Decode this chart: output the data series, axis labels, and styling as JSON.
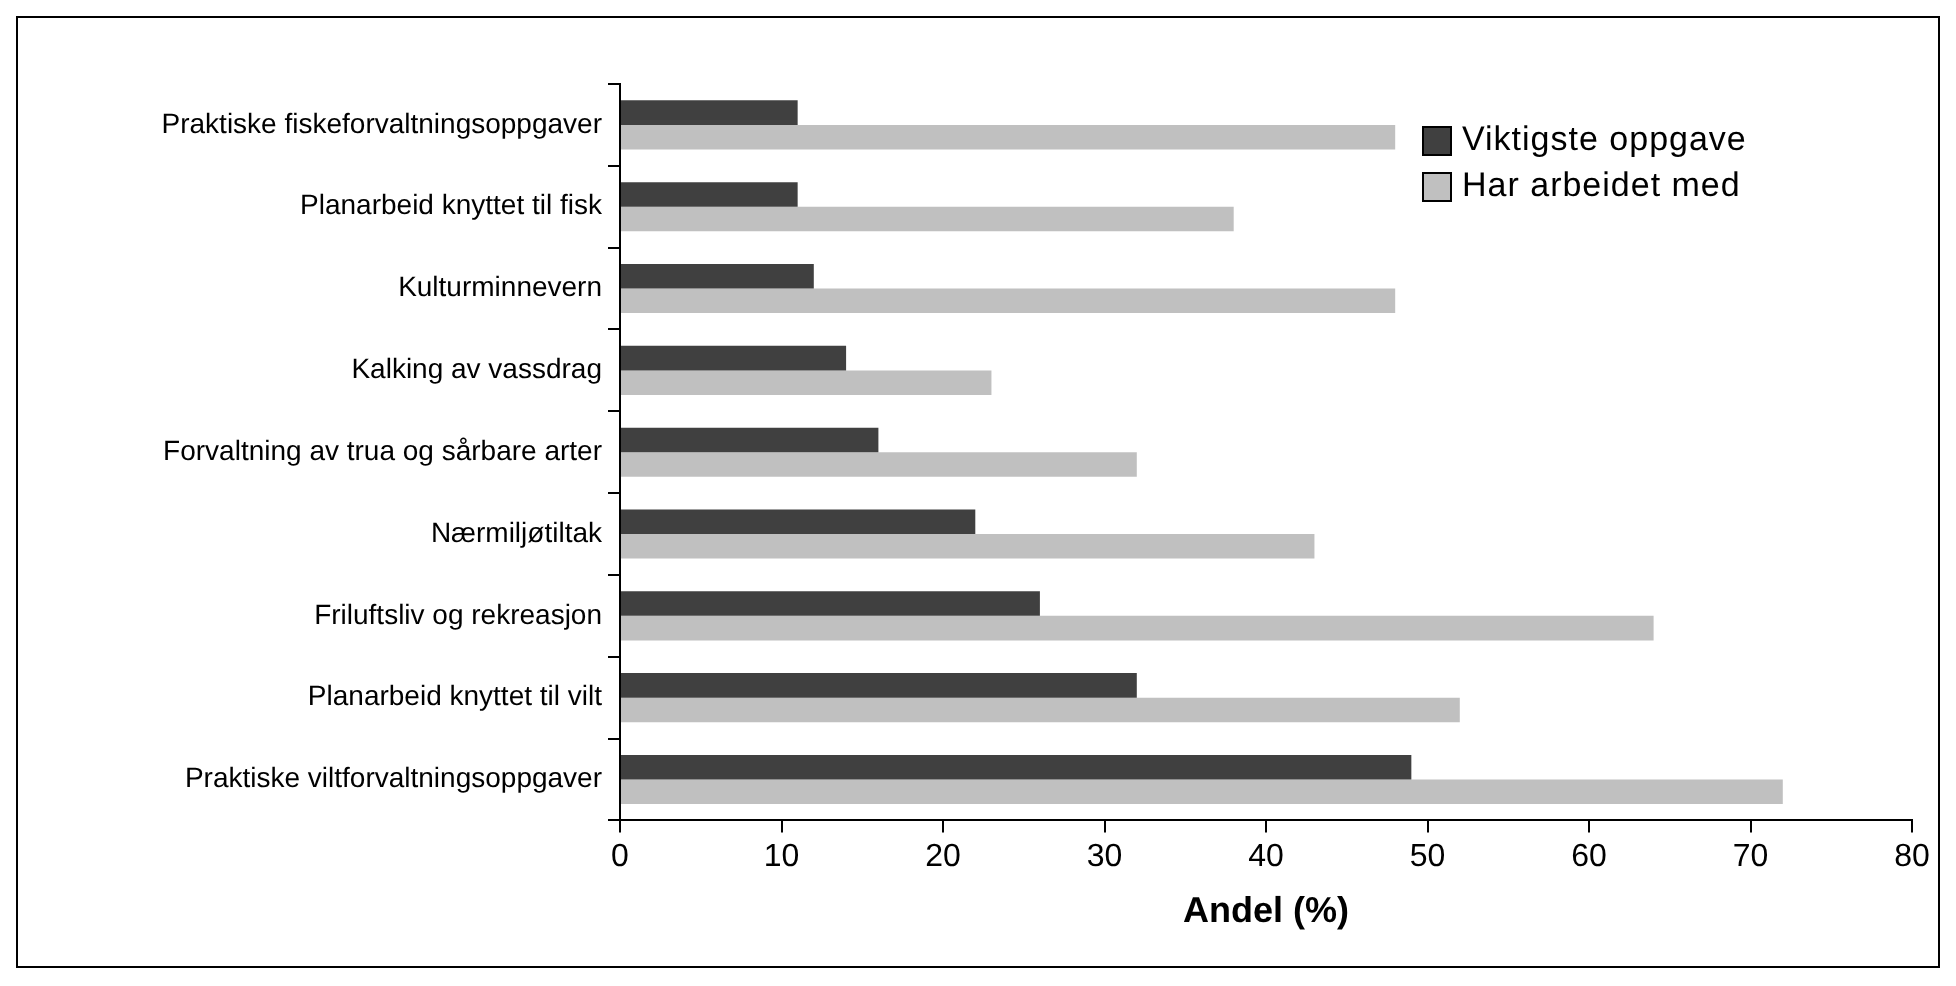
{
  "chart_data": {
    "type": "bar",
    "orientation": "horizontal",
    "xlabel": "Andel (%)",
    "categories": [
      "Praktiske fiskeforvaltningsoppgaver",
      "Planarbeid knyttet til fisk",
      "Kulturminnevern",
      "Kalking av vassdrag",
      "Forvaltning av trua og sårbare arter",
      "Nærmiljøtiltak",
      "Friluftsliv og rekreasjon",
      "Planarbeid knyttet til vilt",
      "Praktiske viltforvaltningsoppgaver"
    ],
    "series": [
      {
        "name": "Viktigste oppgave",
        "color": "#404040",
        "values": [
          11,
          11,
          12,
          14,
          16,
          22,
          26,
          32,
          49
        ]
      },
      {
        "name": "Har arbeidet med",
        "color": "#c0c0c0",
        "values": [
          48,
          38,
          48,
          23,
          32,
          43,
          64,
          52,
          72
        ]
      }
    ],
    "xlim": [
      0,
      80
    ],
    "xticks": [
      0,
      10,
      20,
      30,
      40,
      50,
      60,
      70,
      80
    ],
    "grid": false,
    "legend": "top right"
  }
}
